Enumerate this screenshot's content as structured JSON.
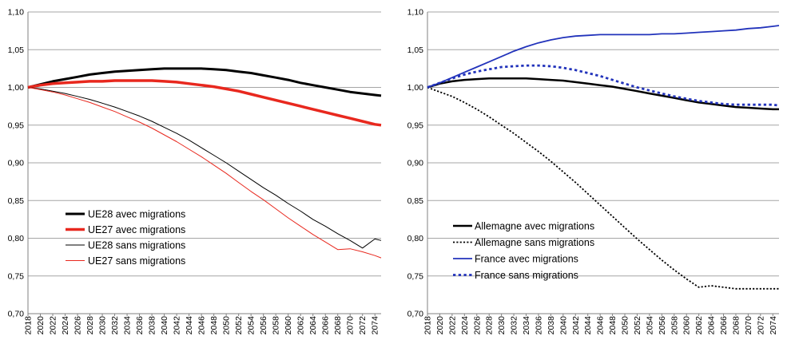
{
  "chart_data": [
    {
      "type": "line",
      "title": "",
      "xlabel": "",
      "ylabel": "",
      "x": [
        2018,
        2020,
        2022,
        2024,
        2026,
        2028,
        2030,
        2032,
        2034,
        2036,
        2038,
        2040,
        2042,
        2044,
        2046,
        2048,
        2050,
        2052,
        2054,
        2056,
        2058,
        2060,
        2062,
        2064,
        2066,
        2068,
        2070,
        2072,
        2074,
        2075
      ],
      "xticks": [
        2018,
        2020,
        2022,
        2024,
        2026,
        2028,
        2030,
        2032,
        2034,
        2036,
        2038,
        2040,
        2042,
        2044,
        2046,
        2048,
        2050,
        2052,
        2054,
        2056,
        2058,
        2060,
        2062,
        2064,
        2066,
        2068,
        2070,
        2072,
        2074
      ],
      "xlim": [
        2018,
        2075
      ],
      "ylim": [
        0.7,
        1.1
      ],
      "yticks": [
        0.7,
        0.75,
        0.8,
        0.85,
        0.9,
        0.95,
        1.0,
        1.05,
        1.1
      ],
      "ytick_labels": [
        "0,70",
        "0,75",
        "0,80",
        "0,85",
        "0,90",
        "0,95",
        "1,00",
        "1,05",
        "1,10"
      ],
      "grid": true,
      "legend_position": "bottom-left",
      "series": [
        {
          "name": "UE28 avec migrations",
          "color": "#000000",
          "width": 3,
          "dash": "solid",
          "values": [
            1.0,
            1.004,
            1.008,
            1.011,
            1.014,
            1.017,
            1.019,
            1.021,
            1.022,
            1.023,
            1.024,
            1.025,
            1.025,
            1.025,
            1.025,
            1.024,
            1.023,
            1.021,
            1.019,
            1.016,
            1.013,
            1.01,
            1.006,
            1.003,
            1.0,
            0.997,
            0.994,
            0.992,
            0.99,
            0.989
          ]
        },
        {
          "name": "UE27 avec migrations",
          "color": "#e8281e",
          "width": 3.5,
          "dash": "solid",
          "values": [
            1.0,
            1.003,
            1.005,
            1.006,
            1.007,
            1.008,
            1.008,
            1.009,
            1.009,
            1.009,
            1.009,
            1.008,
            1.007,
            1.005,
            1.003,
            1.001,
            0.998,
            0.995,
            0.991,
            0.987,
            0.983,
            0.979,
            0.975,
            0.971,
            0.967,
            0.963,
            0.959,
            0.955,
            0.951,
            0.95
          ]
        },
        {
          "name": "UE28 sans migrations",
          "color": "#000000",
          "width": 1,
          "dash": "solid",
          "values": [
            1.0,
            0.998,
            0.995,
            0.992,
            0.988,
            0.984,
            0.979,
            0.974,
            0.968,
            0.962,
            0.955,
            0.947,
            0.939,
            0.93,
            0.92,
            0.91,
            0.9,
            0.889,
            0.878,
            0.867,
            0.857,
            0.846,
            0.836,
            0.825,
            0.816,
            0.806,
            0.797,
            0.787,
            0.799,
            0.797
          ]
        },
        {
          "name": "UE27 sans migrations",
          "color": "#e8281e",
          "width": 1,
          "dash": "solid",
          "values": [
            1.0,
            0.997,
            0.994,
            0.99,
            0.985,
            0.98,
            0.974,
            0.968,
            0.961,
            0.954,
            0.946,
            0.937,
            0.928,
            0.918,
            0.908,
            0.897,
            0.886,
            0.874,
            0.862,
            0.851,
            0.839,
            0.827,
            0.816,
            0.805,
            0.795,
            0.785,
            0.786,
            0.782,
            0.777,
            0.774
          ]
        }
      ]
    },
    {
      "type": "line",
      "title": "",
      "xlabel": "",
      "ylabel": "",
      "x": [
        2018,
        2020,
        2022,
        2024,
        2026,
        2028,
        2030,
        2032,
        2034,
        2036,
        2038,
        2040,
        2042,
        2044,
        2046,
        2048,
        2050,
        2052,
        2054,
        2056,
        2058,
        2060,
        2062,
        2064,
        2066,
        2068,
        2070,
        2072,
        2074,
        2075
      ],
      "xticks": [
        2018,
        2020,
        2022,
        2024,
        2026,
        2028,
        2030,
        2032,
        2034,
        2036,
        2038,
        2040,
        2042,
        2044,
        2046,
        2048,
        2050,
        2052,
        2054,
        2056,
        2058,
        2060,
        2062,
        2064,
        2066,
        2068,
        2070,
        2072,
        2074
      ],
      "xlim": [
        2018,
        2075
      ],
      "ylim": [
        0.7,
        1.1
      ],
      "yticks": [
        0.7,
        0.75,
        0.8,
        0.85,
        0.9,
        0.95,
        1.0,
        1.05,
        1.1
      ],
      "ytick_labels": [
        "0,70",
        "0,75",
        "0,80",
        "0,85",
        "0,90",
        "0,95",
        "1,00",
        "1,05",
        "1,10"
      ],
      "grid": true,
      "legend_position": "bottom-left",
      "series": [
        {
          "name": "Allemagne avec migrations",
          "color": "#000000",
          "width": 2.5,
          "dash": "solid",
          "values": [
            1.0,
            1.005,
            1.008,
            1.01,
            1.011,
            1.012,
            1.012,
            1.012,
            1.012,
            1.011,
            1.01,
            1.009,
            1.007,
            1.005,
            1.003,
            1.001,
            0.998,
            0.995,
            0.992,
            0.989,
            0.986,
            0.983,
            0.98,
            0.978,
            0.976,
            0.974,
            0.973,
            0.972,
            0.971,
            0.971
          ]
        },
        {
          "name": "Allemagne sans migrations",
          "color": "#000000",
          "width": 1.8,
          "dash": "dotted",
          "values": [
            1.0,
            0.994,
            0.988,
            0.98,
            0.971,
            0.961,
            0.95,
            0.939,
            0.927,
            0.915,
            0.902,
            0.888,
            0.874,
            0.859,
            0.844,
            0.829,
            0.814,
            0.799,
            0.785,
            0.771,
            0.758,
            0.746,
            0.735,
            0.737,
            0.735,
            0.733,
            0.733,
            0.733,
            0.733,
            0.733
          ]
        },
        {
          "name": "France avec migrations",
          "color": "#2233bb",
          "width": 1.8,
          "dash": "solid",
          "values": [
            1.0,
            1.006,
            1.013,
            1.02,
            1.027,
            1.034,
            1.041,
            1.048,
            1.054,
            1.059,
            1.063,
            1.066,
            1.068,
            1.069,
            1.07,
            1.07,
            1.07,
            1.07,
            1.07,
            1.071,
            1.071,
            1.072,
            1.073,
            1.074,
            1.075,
            1.076,
            1.078,
            1.079,
            1.081,
            1.082
          ]
        },
        {
          "name": "France sans migrations",
          "color": "#2233bb",
          "width": 2.8,
          "dash": "dotted",
          "values": [
            1.0,
            1.006,
            1.012,
            1.017,
            1.021,
            1.024,
            1.027,
            1.028,
            1.029,
            1.029,
            1.028,
            1.026,
            1.023,
            1.019,
            1.015,
            1.01,
            1.005,
            1.0,
            0.996,
            0.992,
            0.988,
            0.985,
            0.982,
            0.98,
            0.978,
            0.977,
            0.977,
            0.977,
            0.977,
            0.976
          ]
        }
      ]
    }
  ]
}
